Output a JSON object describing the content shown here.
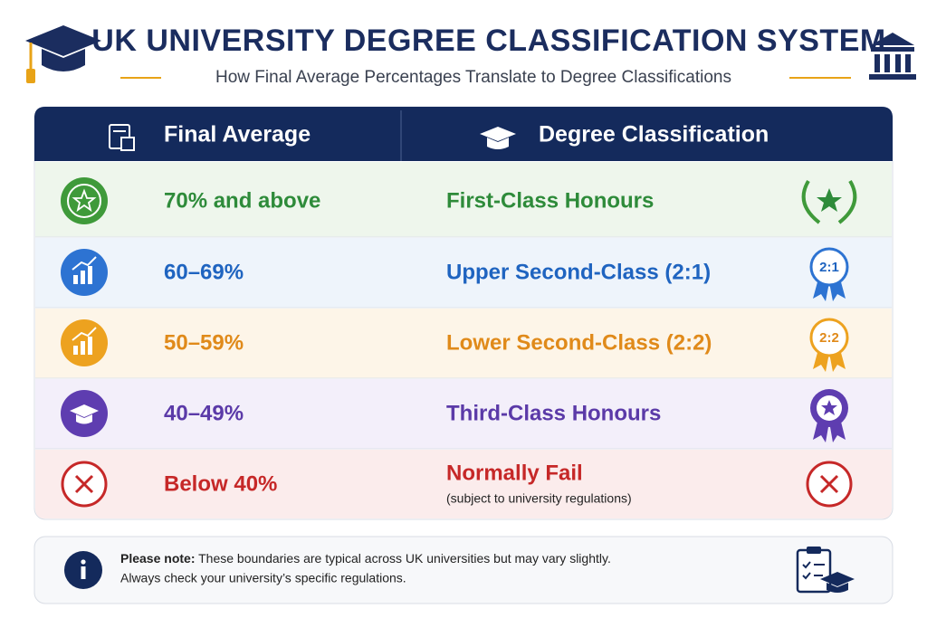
{
  "header": {
    "title": "UK UNIVERSITY DEGREE CLASSIFICATION SYSTEM",
    "subtitle": "How Final Average Percentages Translate to Degree Classifications"
  },
  "table": {
    "headers": [
      "Final Average",
      "Degree Classification"
    ],
    "rows": [
      {
        "average": "70% and above",
        "classification": "First-Class Honours"
      },
      {
        "average": "60–69%",
        "classification": "Upper Second-Class (2:1)",
        "badge": "2:1"
      },
      {
        "average": "50–59%",
        "classification": "Lower Second-Class (2:2)",
        "badge": "2:2"
      },
      {
        "average": "40–49%",
        "classification": "Third-Class Honours"
      },
      {
        "average": "Below 40%",
        "classification": "Normally Fail",
        "detail": "(subject to university regulations)"
      }
    ]
  },
  "note": {
    "label": "Please note:",
    "lines": [
      "These boundaries are typical across UK universities but may vary slightly.",
      "Always check your university’s specific regulations."
    ]
  }
}
